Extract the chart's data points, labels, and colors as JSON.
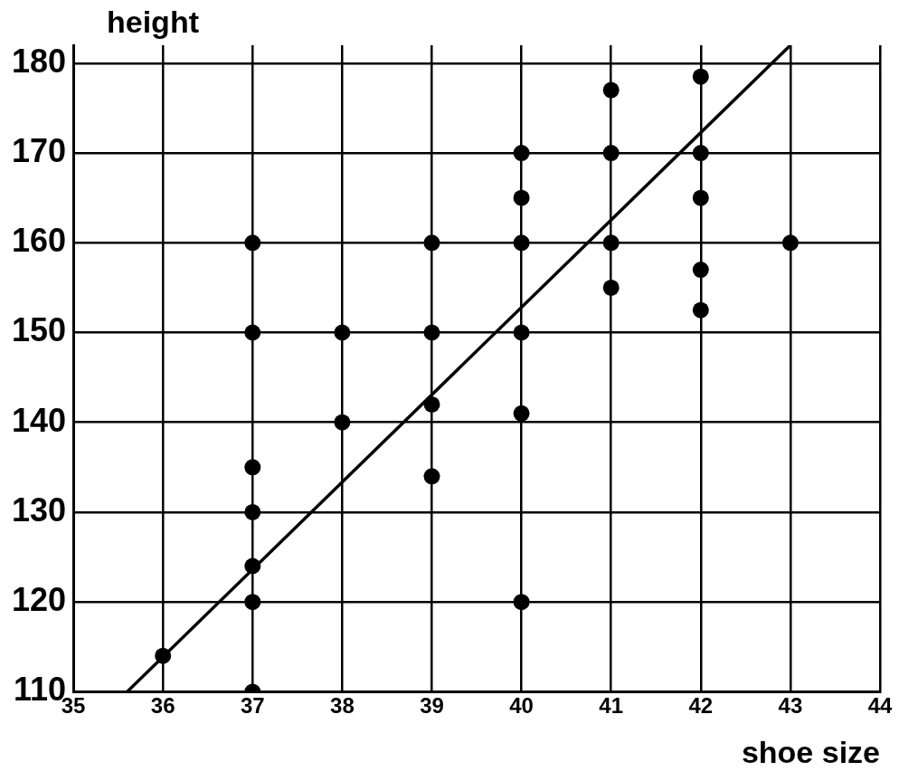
{
  "chart_data": {
    "type": "scatter",
    "xlabel": "shoe size",
    "ylabel": "height",
    "xlim": [
      35,
      44
    ],
    "xticks": [
      35,
      36,
      37,
      38,
      39,
      40,
      41,
      42,
      43,
      44
    ],
    "ylim": [
      110,
      182
    ],
    "yticks": [
      110,
      120,
      130,
      140,
      150,
      160,
      170,
      180
    ],
    "grid": true,
    "legend": false,
    "marker": "circle",
    "series": [
      {
        "color": "#000000",
        "x": [
          36,
          37,
          37,
          37,
          37,
          37,
          37,
          37,
          38,
          38,
          39,
          39,
          39,
          39,
          40,
          40,
          40,
          40,
          40,
          40,
          41,
          41,
          41,
          41,
          42,
          42,
          42,
          42,
          42,
          43
        ],
        "values": [
          114,
          160,
          150,
          135,
          130,
          124,
          120,
          110,
          150,
          140,
          160,
          150,
          142,
          134,
          170,
          165,
          160,
          150,
          141,
          120,
          177,
          170,
          160,
          155,
          178.5,
          170,
          165,
          157,
          152.5,
          160
        ]
      },
      {
        "type": "line",
        "color": "#000000",
        "x": [
          35.6,
          43
        ],
        "values": [
          110,
          182
        ],
        "marker": "none",
        "line_style": "solid"
      }
    ]
  }
}
